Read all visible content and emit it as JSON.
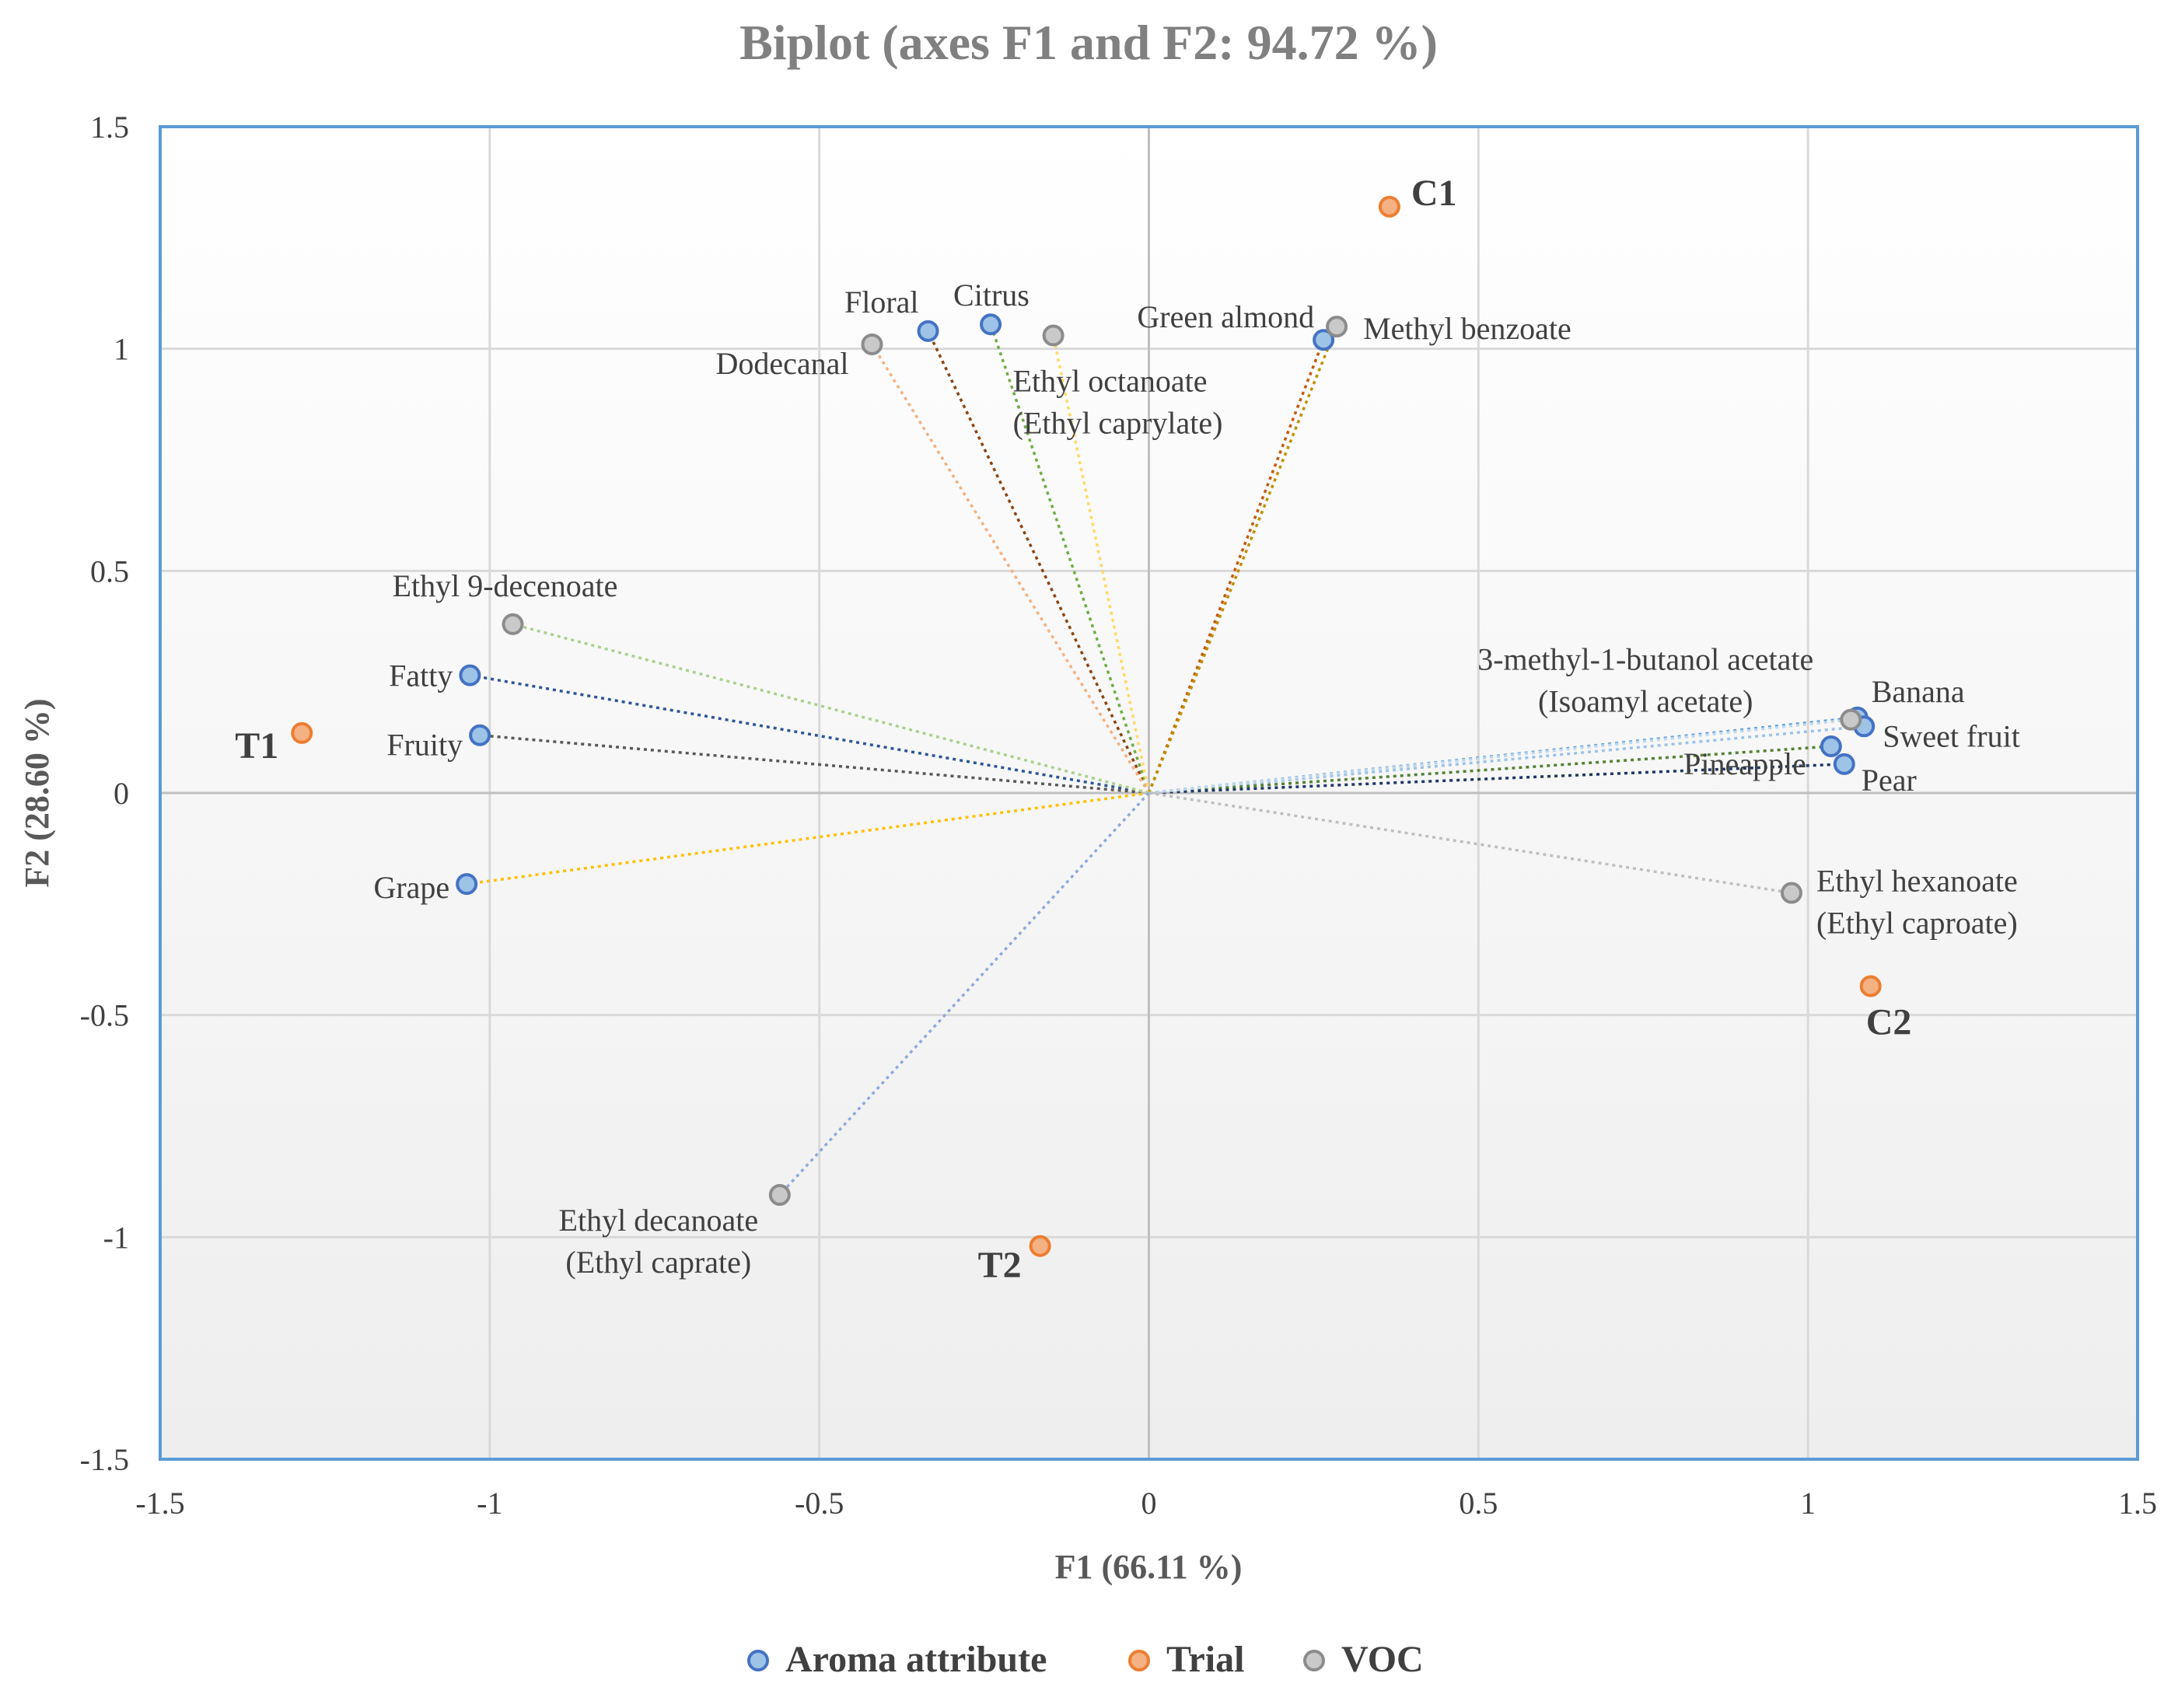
{
  "chart_data": {
    "type": "scatter",
    "title": "Biplot (axes F1 and F2: 94.72 %)",
    "xlabel": "F1 (66.11 %)",
    "ylabel": "F2 (28.60 %)",
    "xlim": [
      -1.5,
      1.5
    ],
    "ylim": [
      -1.5,
      1.5
    ],
    "x_ticks": [
      "-1.5",
      "-1",
      "-0.5",
      "0",
      "0.5",
      "1",
      "1.5"
    ],
    "y_ticks": [
      "1.5",
      "1",
      "0.5",
      "0",
      "-0.5",
      "-1",
      "-1.5"
    ],
    "grid": true,
    "legend_position": "bottom",
    "colors": {
      "aroma_fill": "#9dc3e6",
      "aroma_edge": "#4472c4",
      "trial_fill": "#f4b183",
      "trial_edge": "#ed7d31",
      "voc_fill": "#c9c9c9",
      "voc_edge": "#8c8c8c",
      "title": "#808080",
      "frame": "#5b9bd5",
      "grid": "#d9d9d9"
    },
    "series": [
      {
        "name": "Aroma attribute",
        "key": "aroma",
        "points": [
          {
            "label": "Floral",
            "x": -0.335,
            "y": 1.04,
            "vector_color": "#8b4513"
          },
          {
            "label": "Citrus",
            "x": -0.24,
            "y": 1.055,
            "vector_color": "#70ad47"
          },
          {
            "label": "Green almond",
            "x": 0.265,
            "y": 1.02,
            "vector_color": "#c55a11"
          },
          {
            "label": "Fatty",
            "x": -1.03,
            "y": 0.265,
            "vector_color": "#2e5597"
          },
          {
            "label": "Fruity",
            "x": -1.015,
            "y": 0.13,
            "vector_color": "#595959"
          },
          {
            "label": "Grape",
            "x": -1.035,
            "y": -0.205,
            "vector_color": "#ffc000"
          },
          {
            "label": "Banana",
            "x": 1.075,
            "y": 0.17,
            "vector_color": "#5b9bd5"
          },
          {
            "label": "Sweet fruit",
            "x": 1.085,
            "y": 0.15,
            "vector_color": "#9dc3e6"
          },
          {
            "label": "Pineapple",
            "x": 1.035,
            "y": 0.105,
            "vector_color": "#548235"
          },
          {
            "label": "Pear",
            "x": 1.055,
            "y": 0.065,
            "vector_color": "#1f3864"
          }
        ]
      },
      {
        "name": "Trial",
        "key": "trial",
        "points": [
          {
            "label": "C1",
            "x": 0.365,
            "y": 1.32
          },
          {
            "label": "T1",
            "x": -1.285,
            "y": 0.135
          },
          {
            "label": "C2",
            "x": 1.095,
            "y": -0.435
          },
          {
            "label": "T2",
            "x": -0.165,
            "y": -1.02
          }
        ]
      },
      {
        "name": "VOC",
        "key": "voc",
        "points": [
          {
            "label": "Dodecanal",
            "x": -0.42,
            "y": 1.01,
            "vector_color": "#f4b183"
          },
          {
            "label": "Ethyl octanoate (Ethyl caprylate)",
            "lines": [
              "Ethyl octanoate",
              "(Ethyl caprylate)"
            ],
            "x": -0.145,
            "y": 1.03,
            "vector_color": "#ffd966"
          },
          {
            "label": "Methyl benzoate",
            "x": 0.285,
            "y": 1.05,
            "vector_color": "#bf9000"
          },
          {
            "label": "Ethyl 9-decenoate",
            "x": -0.965,
            "y": 0.38,
            "vector_color": "#a9d18e"
          },
          {
            "label": "3-methyl-1-butanol acetate (Isoamyl acetate)",
            "lines": [
              "3-methyl-1-butanol acetate",
              "(Isoamyl acetate)"
            ],
            "x": 1.065,
            "y": 0.165,
            "vector_color": "#bdd7ee"
          },
          {
            "label": "Ethyl hexanoate (Ethyl caproate)",
            "lines": [
              "Ethyl hexanoate",
              "(Ethyl caproate)"
            ],
            "x": 0.975,
            "y": -0.225,
            "vector_color": "#bfbfbf"
          },
          {
            "label": "Ethyl decanoate (Ethyl caprate)",
            "lines": [
              "Ethyl decanoate",
              "(Ethyl caprate)"
            ],
            "x": -0.56,
            "y": -0.905,
            "vector_color": "#8faadc"
          }
        ]
      }
    ]
  }
}
